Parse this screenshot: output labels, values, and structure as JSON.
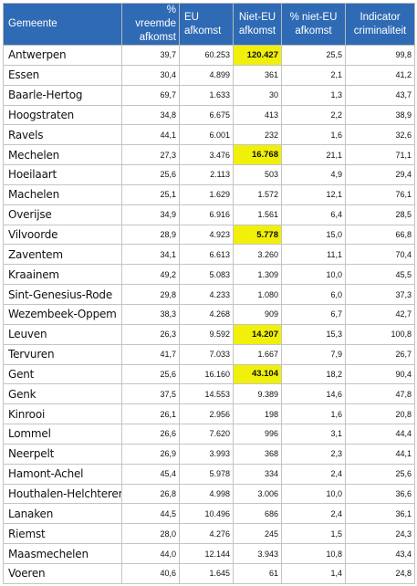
{
  "colors": {
    "header_bg": "#2f6ab5",
    "header_text": "#ffffff",
    "highlight": "#f0f00a",
    "grid": "#c4c4c4"
  },
  "headers": [
    {
      "line1": "Gemeente",
      "line2": ""
    },
    {
      "line1": "% vreemde",
      "line2": "afkomst"
    },
    {
      "line1": "EU afkomst",
      "line2": ""
    },
    {
      "line1": "Niet-EU",
      "line2": "afkomst"
    },
    {
      "line1": "% niet-EU",
      "line2": "afkomst"
    },
    {
      "line1": "Indicator",
      "line2": "criminaliteit"
    }
  ],
  "rows": [
    {
      "name": "Antwerpen",
      "pct_vreemd": "39,7",
      "eu": "60.253",
      "niet_eu": "120.427",
      "pct_niet_eu": "25,5",
      "indicator": "99,8",
      "highlight": true
    },
    {
      "name": "Essen",
      "pct_vreemd": "30,4",
      "eu": "4.899",
      "niet_eu": "361",
      "pct_niet_eu": "2,1",
      "indicator": "41,2",
      "highlight": false
    },
    {
      "name": "Baarle-Hertog",
      "pct_vreemd": "69,7",
      "eu": "1.633",
      "niet_eu": "30",
      "pct_niet_eu": "1,3",
      "indicator": "43,7",
      "highlight": false
    },
    {
      "name": "Hoogstraten",
      "pct_vreemd": "34,8",
      "eu": "6.675",
      "niet_eu": "413",
      "pct_niet_eu": "2,2",
      "indicator": "38,9",
      "highlight": false
    },
    {
      "name": "Ravels",
      "pct_vreemd": "44,1",
      "eu": "6.001",
      "niet_eu": "232",
      "pct_niet_eu": "1,6",
      "indicator": "32,6",
      "highlight": false
    },
    {
      "name": "Mechelen",
      "pct_vreemd": "27,3",
      "eu": "3.476",
      "niet_eu": "16.768",
      "pct_niet_eu": "21,1",
      "indicator": "71,1",
      "highlight": true
    },
    {
      "name": "Hoeilaart",
      "pct_vreemd": "25,6",
      "eu": "2.113",
      "niet_eu": "503",
      "pct_niet_eu": "4,9",
      "indicator": "29,4",
      "highlight": false
    },
    {
      "name": "Machelen",
      "pct_vreemd": "25,1",
      "eu": "1.629",
      "niet_eu": "1.572",
      "pct_niet_eu": "12,1",
      "indicator": "76,1",
      "highlight": false
    },
    {
      "name": "Overijse",
      "pct_vreemd": "34,9",
      "eu": "6.916",
      "niet_eu": "1.561",
      "pct_niet_eu": "6,4",
      "indicator": "28,5",
      "highlight": false
    },
    {
      "name": "Vilvoorde",
      "pct_vreemd": "28,9",
      "eu": "4.923",
      "niet_eu": "5.778",
      "pct_niet_eu": "15,0",
      "indicator": "66,8",
      "highlight": true
    },
    {
      "name": "Zaventem",
      "pct_vreemd": "34,1",
      "eu": "6.613",
      "niet_eu": "3.260",
      "pct_niet_eu": "11,1",
      "indicator": "70,4",
      "highlight": false
    },
    {
      "name": "Kraainem",
      "pct_vreemd": "49,2",
      "eu": "5.083",
      "niet_eu": "1.309",
      "pct_niet_eu": "10,0",
      "indicator": "45,5",
      "highlight": false
    },
    {
      "name": "Sint-Genesius-Rode",
      "pct_vreemd": "29,8",
      "eu": "4.233",
      "niet_eu": "1.080",
      "pct_niet_eu": "6,0",
      "indicator": "37,3",
      "highlight": false
    },
    {
      "name": "Wezembeek-Oppem",
      "pct_vreemd": "38,3",
      "eu": "4.268",
      "niet_eu": "909",
      "pct_niet_eu": "6,7",
      "indicator": "42,7",
      "highlight": false
    },
    {
      "name": "Leuven",
      "pct_vreemd": "26,3",
      "eu": "9.592",
      "niet_eu": "14.207",
      "pct_niet_eu": "15,3",
      "indicator": "100,8",
      "highlight": true
    },
    {
      "name": "Tervuren",
      "pct_vreemd": "41,7",
      "eu": "7.033",
      "niet_eu": "1.667",
      "pct_niet_eu": "7,9",
      "indicator": "26,7",
      "highlight": false
    },
    {
      "name": "Gent",
      "pct_vreemd": "25,6",
      "eu": "16.160",
      "niet_eu": "43.104",
      "pct_niet_eu": "18,2",
      "indicator": "90,4",
      "highlight": true
    },
    {
      "name": "Genk",
      "pct_vreemd": "37,5",
      "eu": "14.553",
      "niet_eu": "9.389",
      "pct_niet_eu": "14,6",
      "indicator": "47,8",
      "highlight": false
    },
    {
      "name": "Kinrooi",
      "pct_vreemd": "26,1",
      "eu": "2.956",
      "niet_eu": "198",
      "pct_niet_eu": "1,6",
      "indicator": "20,8",
      "highlight": false
    },
    {
      "name": "Lommel",
      "pct_vreemd": "26,6",
      "eu": "7.620",
      "niet_eu": "996",
      "pct_niet_eu": "3,1",
      "indicator": "44,4",
      "highlight": false
    },
    {
      "name": "Neerpelt",
      "pct_vreemd": "26,9",
      "eu": "3.993",
      "niet_eu": "368",
      "pct_niet_eu": "2,3",
      "indicator": "44,1",
      "highlight": false
    },
    {
      "name": "Hamont-Achel",
      "pct_vreemd": "45,4",
      "eu": "5.978",
      "niet_eu": "334",
      "pct_niet_eu": "2,4",
      "indicator": "25,6",
      "highlight": false
    },
    {
      "name": "Houthalen-Helchteren",
      "pct_vreemd": "26,8",
      "eu": "4.998",
      "niet_eu": "3.006",
      "pct_niet_eu": "10,0",
      "indicator": "36,6",
      "highlight": false
    },
    {
      "name": "Lanaken",
      "pct_vreemd": "44,5",
      "eu": "10.496",
      "niet_eu": "686",
      "pct_niet_eu": "2,4",
      "indicator": "36,1",
      "highlight": false
    },
    {
      "name": "Riemst",
      "pct_vreemd": "28,0",
      "eu": "4.276",
      "niet_eu": "245",
      "pct_niet_eu": "1,5",
      "indicator": "24,3",
      "highlight": false
    },
    {
      "name": "Maasmechelen",
      "pct_vreemd": "44,0",
      "eu": "12.144",
      "niet_eu": "3.943",
      "pct_niet_eu": "10,8",
      "indicator": "43,4",
      "highlight": false
    },
    {
      "name": "Voeren",
      "pct_vreemd": "40,6",
      "eu": "1.645",
      "niet_eu": "61",
      "pct_niet_eu": "1,4",
      "indicator": "24,8",
      "highlight": false
    }
  ]
}
